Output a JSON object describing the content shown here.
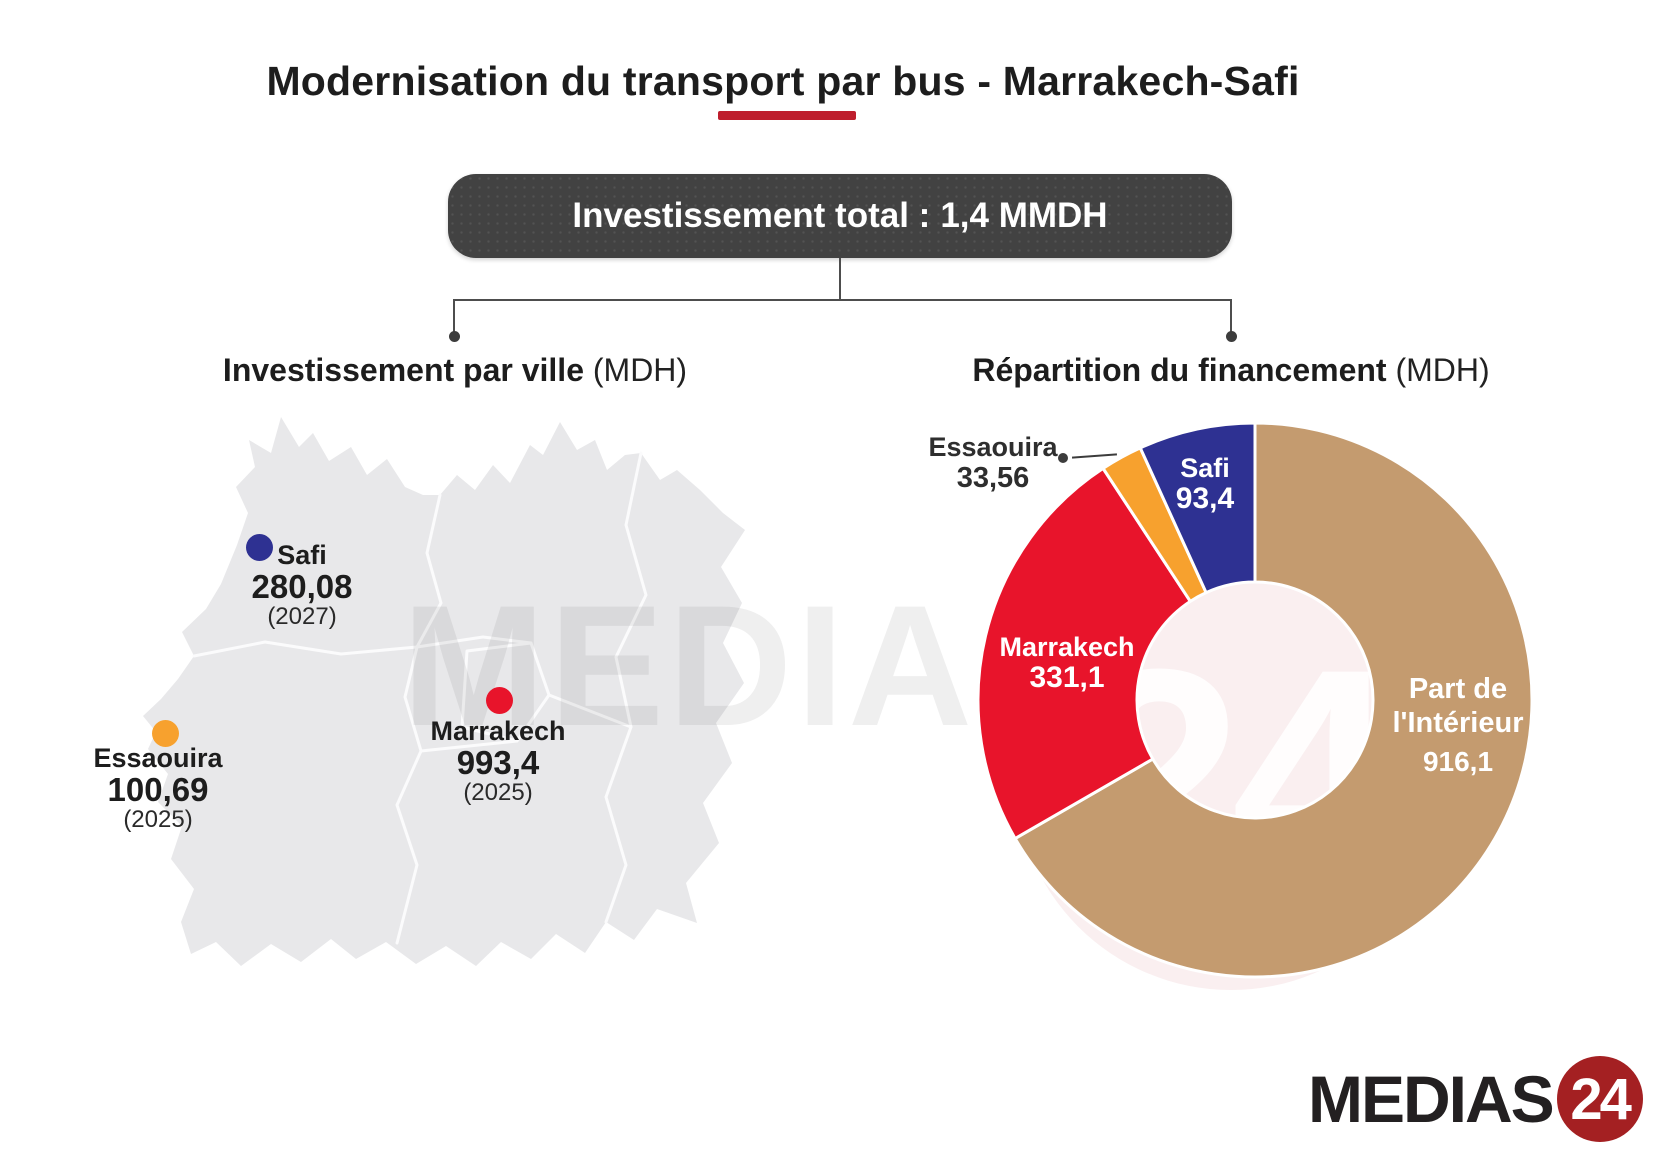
{
  "title": {
    "text": "Modernisation du transport par bus - Marrakech-Safi",
    "underline_color": "#BE1E2D"
  },
  "total_box": {
    "label": "Investissement total :",
    "value": "1,4 MMDH",
    "background": "#424242"
  },
  "sections": {
    "left": {
      "title": "Investissement par ville",
      "unit": "(MDH)"
    },
    "right": {
      "title": "Répartition du financement",
      "unit": "(MDH)"
    }
  },
  "map": {
    "region_fill": "#E8E8EA",
    "border_color": "#FBFBFC",
    "cities": [
      {
        "name": "Safi",
        "value": "280,08",
        "year": "(2027)",
        "color": "#2E3192"
      },
      {
        "name": "Marrakech",
        "value": "993,4",
        "year": "(2025)",
        "color": "#E8142B"
      },
      {
        "name": "Essaouira",
        "value": "100,69",
        "year": "(2025)",
        "color": "#F7A12E"
      }
    ]
  },
  "chart_data": [
    {
      "type": "pie",
      "subtype": "donut",
      "title": "Répartition du financement (MDH)",
      "legend_position": "inside-slices",
      "start_angle_deg": 0,
      "direction": "clockwise",
      "outer_radius": 277,
      "inner_radius": 118,
      "total": 1374.16,
      "segments": [
        {
          "id": "interior",
          "label": "Part de l'Intérieur",
          "label_lines": [
            "Part de",
            "l'Intérieur"
          ],
          "value": 916.1,
          "display": "916,1",
          "color": "#C49B6F"
        },
        {
          "id": "marrakech",
          "label": "Marrakech",
          "value": 331.1,
          "display": "331,1",
          "color": "#E8142B"
        },
        {
          "id": "essaouira",
          "label": "Essaouira",
          "value": 33.56,
          "display": "33,56",
          "color": "#F7A12E"
        },
        {
          "id": "safi",
          "label": "Safi",
          "value": 93.4,
          "display": "93,4",
          "color": "#2E3192"
        }
      ]
    },
    {
      "type": "map",
      "title": "Investissement par ville (MDH)",
      "points": [
        {
          "city": "Safi",
          "value": 280.08,
          "display": "280,08",
          "year": "(2027)",
          "color": "#2E3192"
        },
        {
          "city": "Marrakech",
          "value": 993.4,
          "display": "993,4",
          "year": "(2025)",
          "color": "#E8142B"
        },
        {
          "city": "Essaouira",
          "value": 100.69,
          "display": "100,69",
          "year": "(2025)",
          "color": "#F7A12E"
        }
      ]
    }
  ],
  "watermark": {
    "text": "MEDIAS",
    "badge": "24"
  },
  "logo": {
    "text": "MEDIAS",
    "badge": "24",
    "badge_color": "#A42022"
  }
}
